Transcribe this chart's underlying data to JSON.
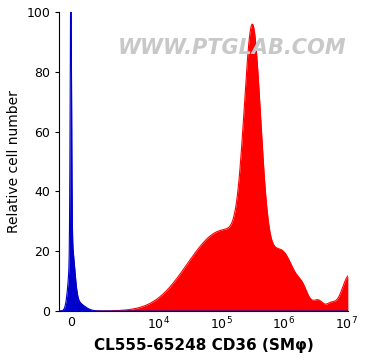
{
  "title": "WWW.PTGLAB.COM",
  "xlabel": "CL555-65248 CD36 (SMφ)",
  "ylabel": "Relative cell number",
  "ylim": [
    0,
    100
  ],
  "yticks": [
    0,
    20,
    40,
    60,
    80,
    100
  ],
  "red_color": "#FF0000",
  "blue_color": "#0000CD",
  "bg_color": "#FFFFFF",
  "watermark_color": "#C8C8C8",
  "watermark_fontsize": 15,
  "xlabel_fontsize": 11,
  "ylabel_fontsize": 10,
  "tick_fontsize": 9
}
